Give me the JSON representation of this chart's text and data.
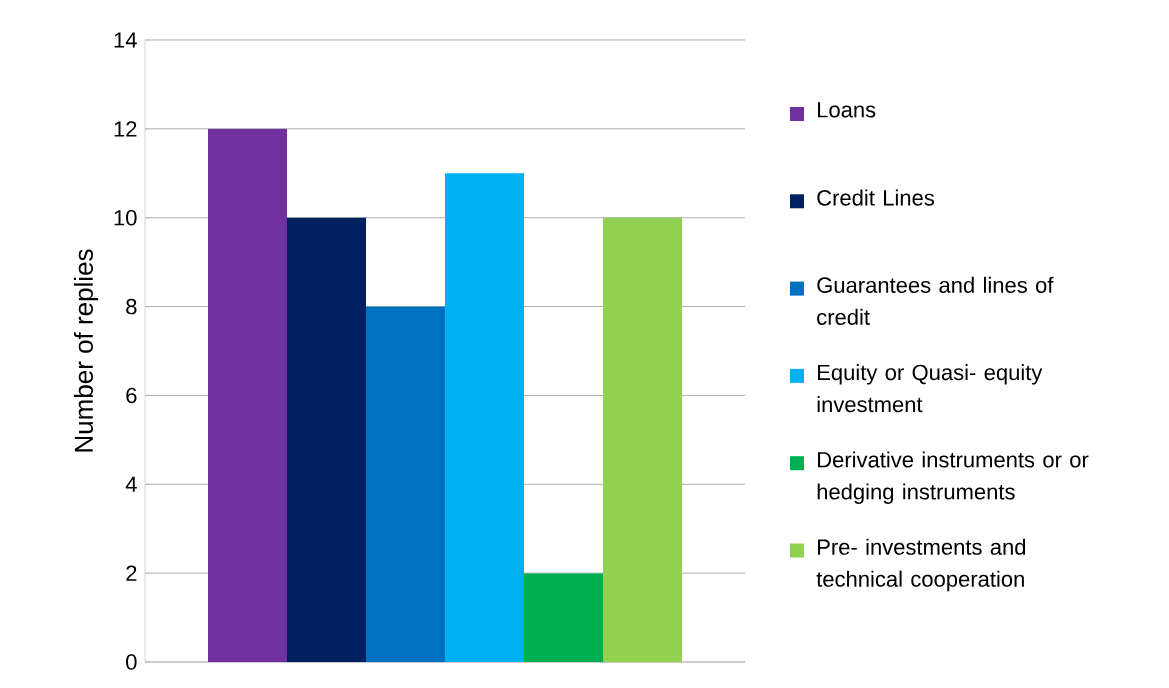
{
  "chart_data": {
    "type": "bar",
    "ylabel": "Number of replies",
    "categories": [
      null
    ],
    "series": [
      {
        "name": "Loans",
        "color": "#7030a0",
        "values": [
          12
        ]
      },
      {
        "name": "Credit Lines",
        "color": "#002060",
        "values": [
          10
        ]
      },
      {
        "name": "Guarantees and lines of credit",
        "color": "#0070c0",
        "values": [
          8
        ]
      },
      {
        "name": "Equity or Quasi- equity investment",
        "color": "#00b0f0",
        "values": [
          11
        ]
      },
      {
        "name": "Derivative instruments or or hedging instruments",
        "color": "#00b050",
        "values": [
          2
        ]
      },
      {
        "name": "Pre- investments and technical cooperation",
        "color": "#92d050",
        "values": [
          10
        ]
      }
    ],
    "ylim": [
      0,
      14
    ],
    "yticks": [
      0,
      2,
      4,
      6,
      8,
      10,
      12,
      14
    ],
    "grid": "y",
    "legend": "right"
  }
}
